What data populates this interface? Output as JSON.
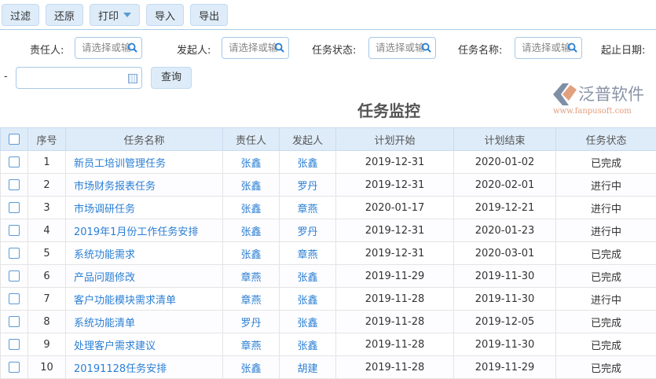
{
  "toolbar": {
    "filter": "过滤",
    "reset": "还原",
    "print": "打印",
    "import": "导入",
    "export": "导出"
  },
  "filters": {
    "owner_label": "责任人:",
    "initiator_label": "发起人:",
    "status_label": "任务状态:",
    "name_label": "任务名称:",
    "date_label": "起止日期:",
    "placeholder": "请选择或输入",
    "date_sep": "-",
    "query": "查询"
  },
  "title": "任务监控",
  "table": {
    "headers": [
      "序号",
      "任务名称",
      "责任人",
      "发起人",
      "计划开始",
      "计划结束",
      "任务状态"
    ],
    "rows": [
      [
        "1",
        "新员工培训管理任务",
        "张鑫",
        "张鑫",
        "2019-12-31",
        "2020-01-02",
        "已完成"
      ],
      [
        "2",
        "市场财务报表任务",
        "张鑫",
        "罗丹",
        "2019-12-31",
        "2020-02-01",
        "进行中"
      ],
      [
        "3",
        "市场调研任务",
        "张鑫",
        "章燕",
        "2020-01-17",
        "2019-12-21",
        "进行中"
      ],
      [
        "4",
        "2019年1月份工作任务安排",
        "张鑫",
        "罗丹",
        "2019-12-31",
        "2020-01-23",
        "进行中"
      ],
      [
        "5",
        "系统功能需求",
        "张鑫",
        "章燕",
        "2019-12-31",
        "2020-03-01",
        "已完成"
      ],
      [
        "6",
        "产品问题修改",
        "章燕",
        "张鑫",
        "2019-11-29",
        "2019-11-30",
        "已完成"
      ],
      [
        "7",
        "客户功能模块需求清单",
        "章燕",
        "张鑫",
        "2019-11-28",
        "2019-11-30",
        "进行中"
      ],
      [
        "8",
        "系统功能清单",
        "罗丹",
        "张鑫",
        "2019-11-28",
        "2019-12-05",
        "已完成"
      ],
      [
        "9",
        "处理客户需求建议",
        "章燕",
        "张鑫",
        "2019-11-28",
        "2019-11-30",
        "已完成"
      ],
      [
        "10",
        "20191128任务安排",
        "张鑫",
        "胡建",
        "2019-11-28",
        "2019-11-29",
        "已完成"
      ]
    ]
  },
  "watermark": {
    "brand": "泛普软件",
    "url": "www.fanpusoft.com"
  },
  "colors": {
    "accent": "#2a7fd4",
    "button_bg": "#deecf9",
    "header_bg": "#deecf9"
  }
}
